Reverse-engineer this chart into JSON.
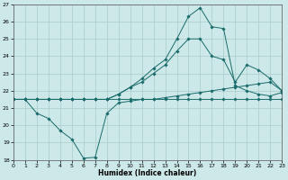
{
  "xlabel": "Humidex (Indice chaleur)",
  "xlim": [
    0,
    23
  ],
  "ylim": [
    18,
    27
  ],
  "yticks": [
    18,
    19,
    20,
    21,
    22,
    23,
    24,
    25,
    26,
    27
  ],
  "xticks": [
    0,
    1,
    2,
    3,
    4,
    5,
    6,
    7,
    8,
    9,
    10,
    11,
    12,
    13,
    14,
    15,
    16,
    17,
    18,
    19,
    20,
    21,
    22,
    23
  ],
  "background_color": "#cce8e8",
  "grid_color": "#aacccc",
  "line_color": "#1a6b6b",
  "series": {
    "dip": [
      21.5,
      21.5,
      20.7,
      20.4,
      19.7,
      19.2,
      18.1,
      18.15,
      20.7,
      21.3,
      21.4,
      21.5,
      21.5,
      21.5,
      21.5,
      21.5,
      21.5,
      21.5,
      21.5,
      21.5,
      21.5,
      21.5,
      21.5,
      21.5
    ],
    "high": [
      21.5,
      21.5,
      21.5,
      21.5,
      21.5,
      21.5,
      21.5,
      21.5,
      21.5,
      21.8,
      22.2,
      22.7,
      23.3,
      23.8,
      25.0,
      26.3,
      26.8,
      25.7,
      25.6,
      22.3,
      22.0,
      21.8,
      21.7,
      21.9
    ],
    "mid": [
      21.5,
      21.5,
      21.5,
      21.5,
      21.5,
      21.5,
      21.5,
      21.5,
      21.5,
      21.8,
      22.2,
      22.5,
      23.0,
      23.5,
      24.3,
      25.0,
      25.0,
      24.0,
      23.8,
      22.5,
      23.5,
      23.2,
      22.7,
      22.0
    ],
    "flat": [
      21.5,
      21.5,
      21.5,
      21.5,
      21.5,
      21.5,
      21.5,
      21.5,
      21.5,
      21.5,
      21.5,
      21.5,
      21.5,
      21.6,
      21.7,
      21.8,
      21.9,
      22.0,
      22.1,
      22.2,
      22.3,
      22.4,
      22.5,
      22.0
    ]
  }
}
